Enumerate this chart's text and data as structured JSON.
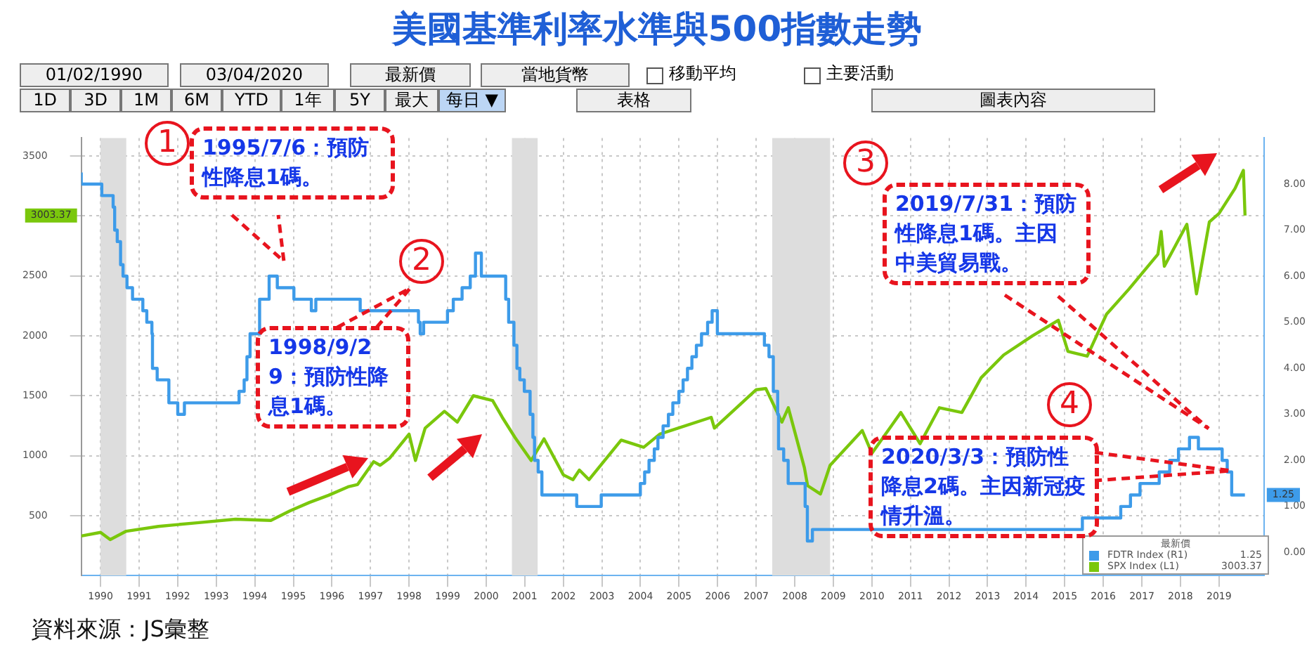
{
  "chart_data": {
    "type": "line",
    "title": "美國基準利率水準與500指數走勢",
    "xlim": [
      "1990-01",
      "2020-09"
    ],
    "xticks": [
      {
        "value": "1990-07",
        "label": "1990"
      },
      {
        "value": "1991-07",
        "label": "1991"
      },
      {
        "value": "1992-07",
        "label": "1992"
      },
      {
        "value": "1993-07",
        "label": "1993"
      },
      {
        "value": "1994-07",
        "label": "1994"
      },
      {
        "value": "1995-07",
        "label": "1995"
      },
      {
        "value": "1996-07",
        "label": "1996"
      },
      {
        "value": "1997-07",
        "label": "1997"
      },
      {
        "value": "1998-07",
        "label": "1998"
      },
      {
        "value": "1999-07",
        "label": "1999"
      },
      {
        "value": "2000-07",
        "label": "2000"
      },
      {
        "value": "2001-07",
        "label": "2001"
      },
      {
        "value": "2002-07",
        "label": "2002"
      },
      {
        "value": "2003-07",
        "label": "2003"
      },
      {
        "value": "2004-07",
        "label": "2004"
      },
      {
        "value": "2005-07",
        "label": "2005"
      },
      {
        "value": "2006-07",
        "label": "2006"
      },
      {
        "value": "2007-07",
        "label": "2007"
      },
      {
        "value": "2008-07",
        "label": "2008"
      },
      {
        "value": "2009-07",
        "label": "2009"
      },
      {
        "value": "2010-07",
        "label": "2010"
      },
      {
        "value": "2011-07",
        "label": "2011"
      },
      {
        "value": "2012-07",
        "label": "2012"
      },
      {
        "value": "2013-07",
        "label": "2013"
      },
      {
        "value": "2014-07",
        "label": "2014"
      },
      {
        "value": "2015-07",
        "label": "2015"
      },
      {
        "value": "2016-07",
        "label": "2016"
      },
      {
        "value": "2017-07",
        "label": "2017"
      },
      {
        "value": "2018-07",
        "label": "2018"
      },
      {
        "value": "2019-07",
        "label": "2019"
      }
    ],
    "ylim": [
      0,
      3650
    ],
    "yticks": [
      500,
      1000,
      1500,
      2000,
      2500,
      {
        "value": 3000,
        "label": null
      },
      3500
    ],
    "y2lim": [
      -0.5,
      9
    ],
    "y2ticks": [
      {
        "value": 0,
        "label": "0.00"
      },
      {
        "value": 1,
        "label": "1.00"
      },
      {
        "value": 2,
        "label": "2.00"
      },
      {
        "value": 3,
        "label": "3.00"
      },
      {
        "value": 4,
        "label": "4.00"
      },
      {
        "value": 5,
        "label": "5.00"
      },
      {
        "value": 6,
        "label": "6.00"
      },
      {
        "value": 7,
        "label": "7.00"
      },
      {
        "value": 8,
        "label": "8.00"
      }
    ],
    "grid": true,
    "legend": "bottom right",
    "legend_title": "最新價",
    "marker": "none",
    "series": [
      {
        "name": "FDTR Index (R1)",
        "type": "step",
        "axis": "y2",
        "color": "#3d9be9",
        "x": [
          "1990-01",
          "1990-07-13",
          "1990-10-29",
          "1990-11-13",
          "1990-12-07",
          "1991-01-08",
          "1991-02-01",
          "1991-03-08",
          "1991-04-30",
          "1991-08-06",
          "1991-09-13",
          "1991-10-31",
          "1991-11-06",
          "1991-12-20",
          "1992-04-09",
          "1992-07-02",
          "1992-09-04",
          "1994-02-04",
          "1994-03-22",
          "1994-04-18",
          "1994-05-17",
          "1994-08-16",
          "1994-11-15",
          "1995-02-01",
          "1995-07-06",
          "1995-12-19",
          "1996-01-31",
          "1997-03-25",
          "1998-09-29",
          "1998-10-15",
          "1998-11-17",
          "1999-06-30",
          "1999-08-24",
          "1999-11-16",
          "2000-02-02",
          "2000-03-21",
          "2000-05-16",
          "2001-01-03",
          "2001-01-31",
          "2001-03-20",
          "2001-04-18",
          "2001-05-15",
          "2001-06-27",
          "2001-08-21",
          "2001-09-17",
          "2001-10-02",
          "2001-11-06",
          "2001-12-11",
          "2002-11-06",
          "2003-06-25",
          "2004-06-30",
          "2004-08-10",
          "2004-09-21",
          "2004-11-10",
          "2004-12-14",
          "2005-02-02",
          "2005-03-22",
          "2005-05-03",
          "2005-06-30",
          "2005-08-09",
          "2005-09-20",
          "2005-11-01",
          "2005-12-13",
          "2006-01-31",
          "2006-03-28",
          "2006-05-10",
          "2006-06-29",
          "2007-09-18",
          "2007-10-31",
          "2007-12-11",
          "2008-01-22",
          "2008-01-30",
          "2008-03-18",
          "2008-04-30",
          "2008-10-08",
          "2008-10-29",
          "2008-12-16",
          "2015-12-16",
          "2016-12-14",
          "2017-03-15",
          "2017-06-14",
          "2017-12-13",
          "2018-03-21",
          "2018-06-13",
          "2018-09-26",
          "2018-12-19",
          "2019-07-31",
          "2019-09-18",
          "2019-10-30",
          "2020-03-03"
        ],
        "values": [
          8.25,
          8,
          7.75,
          7.5,
          7,
          6.75,
          6.25,
          6,
          5.75,
          5.5,
          5.25,
          5,
          4.75,
          4,
          3.75,
          3.25,
          3,
          3.25,
          3.5,
          3.75,
          4.25,
          4.75,
          5.5,
          6,
          5.75,
          5.5,
          5.25,
          5.5,
          5.25,
          5,
          4.75,
          5,
          5.25,
          5.5,
          5.75,
          6,
          6.5,
          6,
          5.5,
          5,
          4.5,
          4,
          3.75,
          3.5,
          3,
          2.5,
          2,
          1.75,
          1.25,
          1,
          1.25,
          1.5,
          1.75,
          2,
          2.25,
          2.5,
          2.75,
          3,
          3.25,
          3.5,
          3.75,
          4,
          4.25,
          4.5,
          4.75,
          5,
          5.25,
          4.75,
          4.5,
          4.25,
          3.5,
          3,
          2.25,
          2,
          1.5,
          1,
          0.25,
          0.5,
          0.75,
          1,
          1.25,
          1.5,
          1.75,
          2,
          2.25,
          2.5,
          2.25,
          2,
          1.75,
          1.25
        ]
      },
      {
        "name": "SPX Index (L1)",
        "color": "#7ac70c",
        "x": [
          "1990-01",
          "1990-07",
          "1990-10",
          "1991-03",
          "1992-01",
          "1993-01",
          "1994-01",
          "1994-12",
          "1995-06",
          "1995-12",
          "1996-06",
          "1996-12",
          "1997-03",
          "1997-08",
          "1997-10",
          "1998-01",
          "1998-07",
          "1998-08-31",
          "1998-12",
          "1999-06",
          "1999-10",
          "2000-03",
          "2000-09",
          "2000-12",
          "2001-04",
          "2001-09",
          "2002-01",
          "2002-07",
          "2002-10",
          "2002-12",
          "2003-03",
          "2004-01",
          "2004-08",
          "2005-01",
          "2006-05",
          "2006-06",
          "2007-07",
          "2007-10",
          "2008-03",
          "2008-05",
          "2008-10",
          "2008-11",
          "2009-03",
          "2009-06",
          "2010-04",
          "2010-07",
          "2011-04",
          "2011-10",
          "2012-04",
          "2012-11",
          "2013-05",
          "2013-12",
          "2014-09",
          "2015-05",
          "2015-08",
          "2016-02",
          "2016-08",
          "2017-03",
          "2017-12",
          "2018-01",
          "2018-02",
          "2018-09",
          "2018-12",
          "2019-04",
          "2019-07",
          "2019-12",
          "2020-02-19",
          "2020-03-04"
        ],
        "values": [
          330,
          360,
          300,
          370,
          410,
          440,
          470,
          460,
          540,
          610,
          670,
          740,
          760,
          950,
          920,
          980,
          1180,
          960,
          1230,
          1370,
          1280,
          1500,
          1460,
          1320,
          1150,
          960,
          1140,
          840,
          800,
          880,
          800,
          1130,
          1070,
          1180,
          1320,
          1230,
          1550,
          1560,
          1280,
          1400,
          900,
          750,
          680,
          920,
          1210,
          1020,
          1360,
          1100,
          1400,
          1360,
          1650,
          1840,
          2000,
          2130,
          1870,
          1830,
          2180,
          2390,
          2680,
          2870,
          2580,
          2930,
          2350,
          2950,
          3020,
          3230,
          3380,
          3003.37
        ]
      }
    ],
    "bands": [
      {
        "axis": "x",
        "from": "1990-07",
        "to": "1991-03",
        "color": "#dddddd"
      },
      {
        "axis": "x",
        "from": "2001-03",
        "to": "2001-11",
        "color": "#dddddd"
      },
      {
        "axis": "x",
        "from": "2007-12",
        "to": "2009-06",
        "color": "#dddddd"
      }
    ],
    "annotations": [
      "01/02/1990",
      "03/04/2020",
      "最新價",
      "當地貨幣",
      "移動平均",
      "主要活動",
      "1D",
      "3D",
      "1M",
      "6M",
      "YTD",
      "1年",
      "5Y",
      "最大",
      "每日 ▼",
      "表格",
      "圖表內容",
      "1",
      "1995/7/6：預防性降息1碼。",
      "2",
      "1998/9/29：預防性降息1碼。",
      "3",
      "2019/7/31：預防性降息1碼。主因中美貿易戰。",
      "4",
      "2020/3/3：預防性降息2碼。主因新冠疫情升溫。",
      "資料來源：JS彙整",
      "1.25",
      "3003.37"
    ]
  }
}
